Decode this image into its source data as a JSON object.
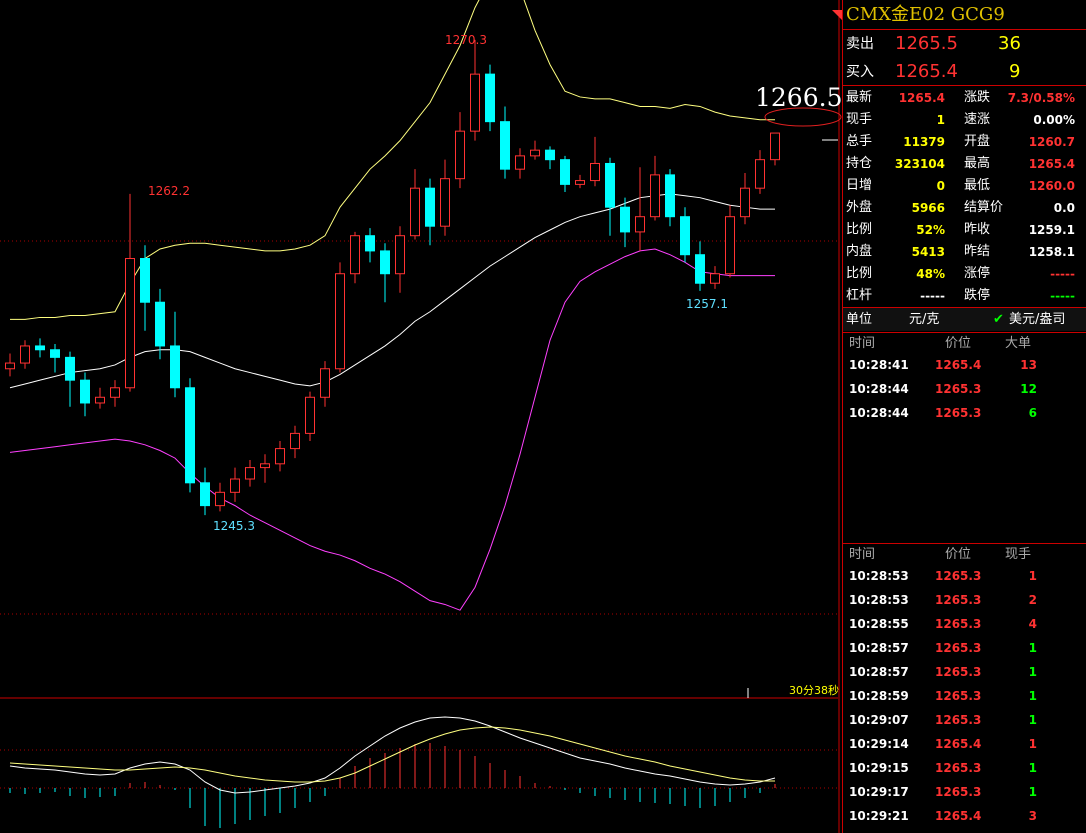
{
  "chart_data": {
    "type": "candlestick",
    "ylim": [
      1236.1,
      1272.4
    ],
    "open": [
      1253.0,
      1253.3,
      1254.2,
      1254.0,
      1253.6,
      1252.4,
      1251.2,
      1251.5,
      1252.0,
      1258.8,
      1256.5,
      1254.2,
      1252.0,
      1247.0,
      1245.8,
      1246.5,
      1247.2,
      1247.8,
      1248.0,
      1248.8,
      1249.6,
      1251.5,
      1253.0,
      1258.0,
      1260.0,
      1259.2,
      1258.0,
      1260.0,
      1262.5,
      1260.5,
      1263.0,
      1265.5,
      1268.5,
      1266.0,
      1263.5,
      1264.2,
      1264.5,
      1264.0,
      1262.7,
      1262.9,
      1263.8,
      1261.5,
      1260.2,
      1261.0,
      1263.2,
      1261.0,
      1259.0,
      1257.5,
      1258.0,
      1261.0,
      1262.5,
      1264.0
    ],
    "high": [
      1253.8,
      1254.5,
      1254.6,
      1254.3,
      1253.9,
      1252.8,
      1252.0,
      1252.4,
      1262.2,
      1259.5,
      1257.2,
      1256.0,
      1252.5,
      1247.8,
      1247.0,
      1247.8,
      1248.2,
      1248.5,
      1249.2,
      1250.0,
      1251.8,
      1253.4,
      1258.6,
      1260.2,
      1260.4,
      1259.6,
      1260.5,
      1263.5,
      1263.0,
      1264.0,
      1266.5,
      1270.3,
      1269.0,
      1266.8,
      1264.6,
      1265.0,
      1264.7,
      1264.2,
      1263.2,
      1265.2,
      1264.1,
      1262.0,
      1263.6,
      1264.2,
      1263.5,
      1261.5,
      1259.7,
      1258.4,
      1261.6,
      1263.3,
      1264.5,
      1265.4
    ],
    "low": [
      1252.6,
      1253.0,
      1253.6,
      1252.8,
      1251.0,
      1250.5,
      1250.9,
      1251.0,
      1251.8,
      1255.0,
      1253.5,
      1251.5,
      1246.5,
      1245.3,
      1245.5,
      1246.0,
      1246.8,
      1247.0,
      1247.6,
      1248.3,
      1249.2,
      1251.0,
      1252.8,
      1257.5,
      1258.6,
      1256.5,
      1257.0,
      1259.8,
      1259.5,
      1260.0,
      1262.5,
      1265.0,
      1265.5,
      1263.0,
      1263.0,
      1264.0,
      1263.5,
      1262.3,
      1262.5,
      1262.6,
      1260.0,
      1259.4,
      1259.2,
      1260.8,
      1260.5,
      1258.6,
      1257.1,
      1257.2,
      1257.8,
      1260.6,
      1262.2,
      1263.7
    ],
    "close": [
      1253.3,
      1254.2,
      1254.0,
      1253.6,
      1252.4,
      1251.2,
      1251.5,
      1252.0,
      1258.8,
      1256.5,
      1254.2,
      1252.0,
      1247.0,
      1245.8,
      1246.5,
      1247.2,
      1247.8,
      1248.0,
      1248.8,
      1249.6,
      1251.5,
      1253.0,
      1258.0,
      1260.0,
      1259.2,
      1258.0,
      1260.0,
      1262.5,
      1260.5,
      1263.0,
      1265.5,
      1268.5,
      1266.0,
      1263.5,
      1264.2,
      1264.5,
      1264.0,
      1262.7,
      1262.9,
      1263.8,
      1261.5,
      1260.2,
      1261.0,
      1263.2,
      1261.0,
      1259.0,
      1257.5,
      1258.0,
      1261.0,
      1262.5,
      1264.0,
      1265.4
    ],
    "bands": [
      {
        "color": "#ffff80",
        "values": [
          1255.6,
          1255.6,
          1255.7,
          1255.7,
          1255.8,
          1255.8,
          1255.9,
          1256.0,
          1257.5,
          1258.8,
          1259.3,
          1259.5,
          1259.6,
          1259.6,
          1259.5,
          1259.4,
          1259.3,
          1259.2,
          1259.2,
          1259.3,
          1259.5,
          1260.0,
          1261.5,
          1262.5,
          1263.5,
          1264.2,
          1265.0,
          1266.0,
          1267.0,
          1268.5,
          1270.0,
          1272.0,
          1273.5,
          1274.0,
          1273.0,
          1270.8,
          1269.0,
          1267.6,
          1267.3,
          1267.2,
          1267.2,
          1267.0,
          1266.8,
          1266.8,
          1266.7,
          1266.9,
          1266.8,
          1266.5,
          1266.3,
          1266.2,
          1266.1,
          1266.1
        ]
      },
      {
        "color": "#ffffff",
        "values": [
          1252.0,
          1252.2,
          1252.4,
          1252.6,
          1252.8,
          1252.9,
          1253.0,
          1253.2,
          1253.6,
          1253.9,
          1254.0,
          1254.0,
          1253.9,
          1253.6,
          1253.3,
          1253.0,
          1252.8,
          1252.6,
          1252.4,
          1252.2,
          1252.1,
          1252.3,
          1252.7,
          1253.2,
          1253.7,
          1254.2,
          1254.8,
          1255.5,
          1256.0,
          1256.6,
          1257.2,
          1257.8,
          1258.4,
          1258.9,
          1259.4,
          1259.9,
          1260.3,
          1260.7,
          1261.0,
          1261.2,
          1261.4,
          1261.7,
          1262.0,
          1262.1,
          1262.2,
          1262.1,
          1262.0,
          1261.8,
          1261.6,
          1261.5,
          1261.4,
          1261.4
        ]
      },
      {
        "color": "#ff40ff",
        "values": [
          1248.6,
          1248.7,
          1248.8,
          1248.9,
          1249.0,
          1249.1,
          1249.2,
          1249.3,
          1249.2,
          1249.0,
          1248.7,
          1248.3,
          1247.5,
          1246.8,
          1246.2,
          1245.8,
          1245.3,
          1244.9,
          1244.5,
          1244.1,
          1243.7,
          1243.4,
          1243.2,
          1242.9,
          1242.5,
          1242.2,
          1241.8,
          1241.3,
          1240.8,
          1240.6,
          1240.3,
          1241.5,
          1243.5,
          1245.8,
          1248.5,
          1251.5,
          1254.5,
          1256.5,
          1257.6,
          1258.1,
          1258.5,
          1258.9,
          1259.2,
          1259.3,
          1259.0,
          1258.6,
          1258.1,
          1258.0,
          1257.9,
          1257.9,
          1257.9,
          1257.9
        ]
      }
    ],
    "annotations": [
      "1270.3",
      "1262.2",
      "1245.3",
      "1257.1",
      "1266.5",
      "30分38秒"
    ],
    "macd": {
      "ylim": [
        -0.45,
        0.9
      ],
      "hist": [
        -0.05,
        -0.06,
        -0.05,
        -0.04,
        -0.08,
        -0.1,
        -0.09,
        -0.08,
        0.05,
        0.06,
        0.03,
        -0.02,
        -0.2,
        -0.38,
        -0.4,
        -0.36,
        -0.32,
        -0.28,
        -0.25,
        -0.2,
        -0.14,
        -0.08,
        0.1,
        0.22,
        0.3,
        0.35,
        0.4,
        0.44,
        0.45,
        0.42,
        0.38,
        0.32,
        0.25,
        0.18,
        0.12,
        0.05,
        0.02,
        -0.02,
        -0.05,
        -0.08,
        -0.1,
        -0.12,
        -0.14,
        -0.15,
        -0.16,
        -0.18,
        -0.2,
        -0.18,
        -0.14,
        -0.1,
        -0.05,
        0.04
      ],
      "dif": [
        0.22,
        0.2,
        0.19,
        0.18,
        0.16,
        0.14,
        0.13,
        0.14,
        0.2,
        0.24,
        0.26,
        0.24,
        0.18,
        0.06,
        -0.02,
        -0.05,
        -0.04,
        -0.02,
        0,
        0.02,
        0.05,
        0.1,
        0.2,
        0.32,
        0.42,
        0.52,
        0.6,
        0.66,
        0.7,
        0.71,
        0.7,
        0.67,
        0.62,
        0.56,
        0.5,
        0.45,
        0.4,
        0.35,
        0.3,
        0.27,
        0.24,
        0.2,
        0.17,
        0.14,
        0.12,
        0.09,
        0.06,
        0.04,
        0.03,
        0.04,
        0.06,
        0.1
      ],
      "dea": [
        0.25,
        0.24,
        0.23,
        0.22,
        0.21,
        0.2,
        0.19,
        0.18,
        0.18,
        0.19,
        0.2,
        0.21,
        0.2,
        0.18,
        0.15,
        0.12,
        0.1,
        0.08,
        0.07,
        0.06,
        0.06,
        0.07,
        0.1,
        0.15,
        0.22,
        0.29,
        0.36,
        0.43,
        0.49,
        0.54,
        0.58,
        0.6,
        0.61,
        0.6,
        0.58,
        0.55,
        0.52,
        0.48,
        0.44,
        0.4,
        0.36,
        0.32,
        0.29,
        0.26,
        0.22,
        0.19,
        0.16,
        0.13,
        0.1,
        0.08,
        0.07,
        0.07
      ]
    }
  },
  "quote": {
    "title": "CMX金E02  GCG9",
    "sell": [
      "卖出",
      "1265.5",
      "36"
    ],
    "buy": [
      "买入",
      "1265.4",
      "9"
    ],
    "stats": [
      [
        "最新",
        "1265.4",
        "涨跌",
        "7.3/0.58%"
      ],
      [
        "现手",
        "1",
        "速涨",
        "0.00%"
      ],
      [
        "总手",
        "11379",
        "开盘",
        "1260.7"
      ],
      [
        "持仓",
        "323104",
        "最高",
        "1265.4"
      ],
      [
        "日增",
        "0",
        "最低",
        "1260.0"
      ],
      [
        "外盘",
        "5966",
        "结算价",
        "0.0"
      ],
      [
        "比例",
        "52%",
        "昨收",
        "1259.1"
      ],
      [
        "内盘",
        "5413",
        "昨结",
        "1258.1"
      ],
      [
        "比例",
        "48%",
        "涨停",
        "-----"
      ],
      [
        "杠杆",
        "-----",
        "跌停",
        "-----"
      ]
    ],
    "unit": [
      "单位",
      "元/克",
      "美元/盎司"
    ],
    "big_trades": {
      "header": [
        "时间",
        "价位",
        "大单"
      ],
      "rows": [
        [
          "10:28:41",
          "1265.4",
          "13"
        ],
        [
          "10:28:44",
          "1265.3",
          "12"
        ],
        [
          "10:28:44",
          "1265.3",
          "6"
        ]
      ]
    },
    "ticks": {
      "header": [
        "时间",
        "价位",
        "现手"
      ],
      "rows": [
        [
          "10:28:53",
          "1265.3",
          "1"
        ],
        [
          "10:28:53",
          "1265.3",
          "2"
        ],
        [
          "10:28:55",
          "1265.3",
          "4"
        ],
        [
          "10:28:57",
          "1265.3",
          "1"
        ],
        [
          "10:28:57",
          "1265.3",
          "1"
        ],
        [
          "10:28:59",
          "1265.3",
          "1"
        ],
        [
          "10:29:07",
          "1265.3",
          "1"
        ],
        [
          "10:29:14",
          "1265.4",
          "1"
        ],
        [
          "10:29:15",
          "1265.3",
          "1"
        ],
        [
          "10:29:17",
          "1265.3",
          "1"
        ],
        [
          "10:29:21",
          "1265.4",
          "3"
        ]
      ]
    }
  }
}
